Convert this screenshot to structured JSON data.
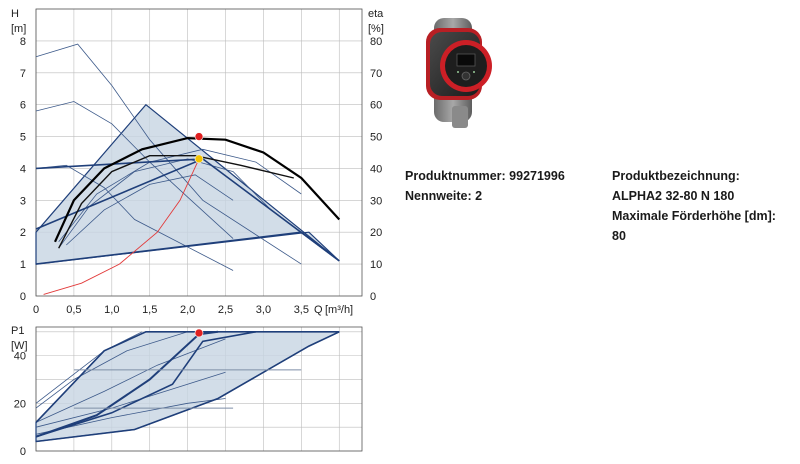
{
  "chart_data": [
    {
      "type": "line",
      "title": "",
      "xlabel": "Q [m³/h]",
      "ylabel": "H [m]",
      "y2label": "eta [%]",
      "xlim": [
        0,
        4.3
      ],
      "ylim": [
        0,
        9
      ],
      "y2lim": [
        0,
        90
      ],
      "x_ticks": [
        "0",
        "0,5",
        "1,0",
        "1,5",
        "2,0",
        "2,5",
        "3,0",
        "3,5"
      ],
      "y_ticks": [
        "0",
        "1",
        "2",
        "3",
        "4",
        "5",
        "6",
        "7",
        "8"
      ],
      "y2_ticks": [
        "0",
        "10",
        "20",
        "30",
        "40",
        "50",
        "60",
        "70",
        "80"
      ],
      "h_axis_label": "H",
      "h_axis_unit": "[m]",
      "eta_axis_label": "eta",
      "eta_axis_unit": "[%]",
      "q_axis_label": "Q",
      "q_axis_unit": "[m³/h]",
      "grid": true,
      "series": [
        {
          "role": "band",
          "points": [
            [
              0,
              2.0
            ],
            [
              1.45,
              6.0
            ],
            [
              4.0,
              1.1
            ],
            [
              3.6,
              2.0
            ],
            [
              0,
              1.0
            ]
          ]
        },
        {
          "role": "thin",
          "points": [
            [
              0,
              7.5
            ],
            [
              0.55,
              7.9
            ],
            [
              1.0,
              6.6
            ],
            [
              1.5,
              4.9
            ],
            [
              2.2,
              3.0
            ],
            [
              3.5,
              1.0
            ]
          ]
        },
        {
          "role": "thin",
          "points": [
            [
              0,
              5.8
            ],
            [
              0.5,
              6.1
            ],
            [
              1.0,
              5.4
            ],
            [
              1.5,
              4.2
            ],
            [
              2.0,
              3.1
            ],
            [
              2.6,
              1.8
            ]
          ]
        },
        {
          "role": "thin",
          "points": [
            [
              0,
              4.0
            ],
            [
              0.4,
              4.1
            ],
            [
              0.9,
              3.4
            ],
            [
              1.3,
              2.4
            ],
            [
              2.6,
              0.8
            ]
          ]
        },
        {
          "role": "thin",
          "points": [
            [
              0.3,
              1.7
            ],
            [
              0.8,
              3.2
            ],
            [
              1.5,
              4.2
            ],
            [
              2.2,
              4.6
            ],
            [
              2.9,
              4.2
            ],
            [
              3.5,
              3.2
            ]
          ]
        },
        {
          "role": "thin",
          "points": [
            [
              0.3,
              1.5
            ],
            [
              0.7,
              2.8
            ],
            [
              1.3,
              3.9
            ],
            [
              2.0,
              4.3
            ],
            [
              2.6,
              3.9
            ],
            [
              3.1,
              2.7
            ]
          ]
        },
        {
          "role": "thin",
          "points": [
            [
              0.4,
              1.6
            ],
            [
              0.9,
              2.7
            ],
            [
              1.5,
              3.5
            ],
            [
              2.1,
              3.8
            ],
            [
              2.6,
              3.0
            ]
          ]
        },
        {
          "role": "control",
          "points": [
            [
              0,
              2.1
            ],
            [
              2.2,
              4.3
            ],
            [
              4.0,
              1.1
            ]
          ]
        },
        {
          "role": "control",
          "points": [
            [
              0,
              1.0
            ],
            [
              3.5,
              2.0
            ],
            [
              4.0,
              1.1
            ]
          ]
        },
        {
          "role": "control",
          "points": [
            [
              0,
              4.0
            ],
            [
              2.2,
              4.3
            ]
          ]
        },
        {
          "role": "max",
          "points": [
            [
              0.25,
              1.7
            ],
            [
              0.5,
              3.0
            ],
            [
              0.9,
              4.0
            ],
            [
              1.4,
              4.6
            ],
            [
              2.0,
              4.95
            ],
            [
              2.5,
              4.9
            ],
            [
              3.0,
              4.5
            ],
            [
              3.5,
              3.7
            ],
            [
              4.0,
              2.4
            ]
          ]
        },
        {
          "role": "mid",
          "points": [
            [
              0.3,
              1.5
            ],
            [
              0.6,
              2.9
            ],
            [
              1.0,
              3.9
            ],
            [
              1.5,
              4.4
            ],
            [
              2.1,
              4.4
            ],
            [
              2.7,
              4.1
            ],
            [
              3.4,
              3.7
            ]
          ]
        },
        {
          "role": "eta",
          "points": [
            [
              0.1,
              0.05
            ],
            [
              0.6,
              0.4
            ],
            [
              1.1,
              1.0
            ],
            [
              1.6,
              2.0
            ],
            [
              1.9,
              3.0
            ],
            [
              2.15,
              4.3
            ]
          ]
        }
      ],
      "markers": [
        {
          "x": 2.15,
          "y": 5.0,
          "color": "#e02020"
        },
        {
          "x": 2.15,
          "y": 4.3,
          "color": "#f2c200"
        }
      ]
    },
    {
      "type": "line",
      "title": "",
      "xlabel": "",
      "ylabel": "P1 [W]",
      "xlim": [
        0,
        4.3
      ],
      "ylim": [
        0,
        52
      ],
      "y_ticks": [
        "0",
        "20",
        "40"
      ],
      "p_axis_label": "P1",
      "p_axis_unit": "[W]",
      "grid": true,
      "series": [
        {
          "role": "band",
          "points": [
            [
              0,
              12
            ],
            [
              0.9,
              42
            ],
            [
              1.45,
              50
            ],
            [
              4.0,
              50
            ],
            [
              3.6,
              44
            ],
            [
              2.4,
              22
            ],
            [
              1.3,
              9
            ],
            [
              0,
              4
            ]
          ]
        },
        {
          "role": "thin",
          "points": [
            [
              0,
              20
            ],
            [
              0.9,
              42
            ],
            [
              1.4,
              50
            ]
          ]
        },
        {
          "role": "thin",
          "points": [
            [
              0,
              18
            ],
            [
              0.5,
              30
            ],
            [
              1.2,
              42
            ],
            [
              2.0,
              50
            ]
          ]
        },
        {
          "role": "thin",
          "points": [
            [
              0,
              12
            ],
            [
              0.9,
              25
            ],
            [
              1.6,
              36
            ],
            [
              2.5,
              47
            ]
          ]
        },
        {
          "role": "thin",
          "points": [
            [
              0,
              10
            ],
            [
              1.0,
              18
            ],
            [
              1.9,
              27
            ],
            [
              2.5,
              33
            ]
          ]
        },
        {
          "role": "thin",
          "points": [
            [
              0,
              7
            ],
            [
              1.0,
              14
            ],
            [
              2.0,
              20
            ],
            [
              2.5,
              22
            ]
          ]
        },
        {
          "role": "control",
          "points": [
            [
              0,
              12
            ],
            [
              0.9,
              42
            ],
            [
              1.45,
              50
            ],
            [
              4.0,
              50
            ]
          ]
        },
        {
          "role": "control",
          "points": [
            [
              0,
              4
            ],
            [
              1.3,
              9
            ],
            [
              2.4,
              22
            ],
            [
              3.6,
              44
            ],
            [
              4.0,
              50
            ]
          ]
        },
        {
          "role": "control",
          "points": [
            [
              0,
              6
            ],
            [
              1.0,
              16
            ],
            [
              1.8,
              28
            ],
            [
              2.2,
              46
            ],
            [
              2.9,
              50
            ]
          ]
        },
        {
          "role": "max",
          "points": [
            [
              0,
              6
            ],
            [
              0.8,
              15
            ],
            [
              1.5,
              30
            ],
            [
              2.15,
              49
            ],
            [
              2.4,
              50
            ]
          ]
        },
        {
          "role": "ref",
          "points": [
            [
              0.5,
              34
            ],
            [
              3.5,
              34
            ]
          ]
        },
        {
          "role": "ref",
          "points": [
            [
              0.5,
              18
            ],
            [
              2.6,
              18
            ]
          ]
        }
      ],
      "markers": [
        {
          "x": 2.15,
          "y": 49.5,
          "color": "#e02020"
        }
      ]
    }
  ],
  "product": {
    "number_label": "Produktnummer: 99271996",
    "size_label": "Nennweite: 2",
    "designation_heading": "Produktbezeichnung:",
    "designation_value": "ALPHA2 32-80 N 180",
    "maxhead_label": "Maximale Förderhöhe [dm]:",
    "maxhead_value": "80"
  },
  "colors": {
    "band_fill": "#c7d4e2",
    "control_line": "#1f3f7a",
    "thin_line": "#3d5a8a",
    "max_curve": "#000000",
    "eta_curve": "#e23a3a",
    "grid": "#bdbdbd"
  },
  "image_icon": "pump-icon"
}
